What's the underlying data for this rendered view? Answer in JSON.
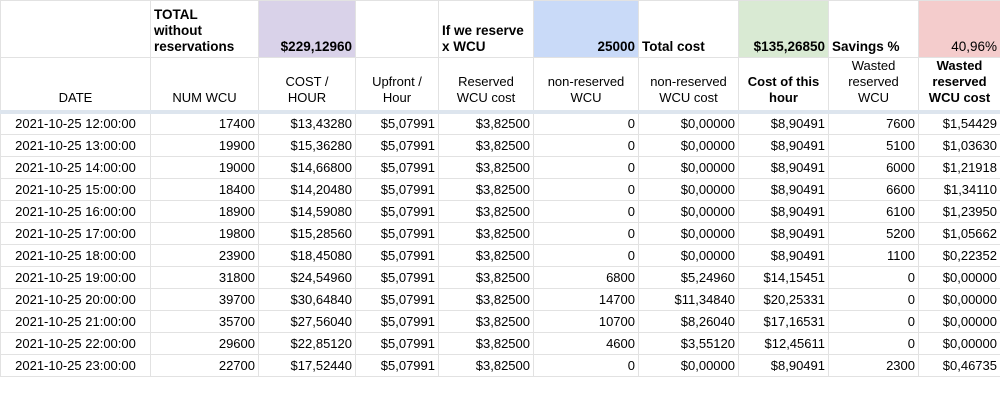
{
  "colors": {
    "purple_highlight": "#d9d2e9",
    "blue_highlight": "#c9daf8",
    "green_highlight": "#d9ead3",
    "red_highlight": "#f4cccc",
    "gridline": "#e2e2e2",
    "frozen_row_divider": "#dde5ee"
  },
  "summary": {
    "total_label": "TOTAL\nwithout\nreservations",
    "total_cost_per_hour": "$229,12960",
    "reserve_label": "If we reserve\nx WCU",
    "reserved_wcu": "25000",
    "total_cost_label": "Total cost",
    "total_cost_value": "$135,26850",
    "savings_label": "Savings %",
    "savings_value": "40,96%"
  },
  "column_headers": [
    "DATE",
    "NUM WCU",
    "COST /\nHOUR",
    "Upfront /\nHour",
    "Reserved\nWCU cost",
    "non-reserved\nWCU",
    "non-reserved\nWCU cost",
    "Cost of this\nhour",
    "Wasted\nreserved\nWCU",
    "Wasted\nreserved\nWCU cost"
  ],
  "column_keys": [
    "date",
    "num-wcu",
    "cost-hour",
    "upfront-hour",
    "reserved-wcu-cost",
    "non-reserved-wcu",
    "non-reserved-wcu-cost",
    "cost-of-this-hour",
    "wasted-reserved-wcu",
    "wasted-reserved-wcu-cost"
  ],
  "rows": [
    [
      "2021-10-25 12:00:00",
      "17400",
      "$13,43280",
      "$5,07991",
      "$3,82500",
      "0",
      "$0,00000",
      "$8,90491",
      "7600",
      "$1,54429"
    ],
    [
      "2021-10-25 13:00:00",
      "19900",
      "$15,36280",
      "$5,07991",
      "$3,82500",
      "0",
      "$0,00000",
      "$8,90491",
      "5100",
      "$1,03630"
    ],
    [
      "2021-10-25 14:00:00",
      "19000",
      "$14,66800",
      "$5,07991",
      "$3,82500",
      "0",
      "$0,00000",
      "$8,90491",
      "6000",
      "$1,21918"
    ],
    [
      "2021-10-25 15:00:00",
      "18400",
      "$14,20480",
      "$5,07991",
      "$3,82500",
      "0",
      "$0,00000",
      "$8,90491",
      "6600",
      "$1,34110"
    ],
    [
      "2021-10-25 16:00:00",
      "18900",
      "$14,59080",
      "$5,07991",
      "$3,82500",
      "0",
      "$0,00000",
      "$8,90491",
      "6100",
      "$1,23950"
    ],
    [
      "2021-10-25 17:00:00",
      "19800",
      "$15,28560",
      "$5,07991",
      "$3,82500",
      "0",
      "$0,00000",
      "$8,90491",
      "5200",
      "$1,05662"
    ],
    [
      "2021-10-25 18:00:00",
      "23900",
      "$18,45080",
      "$5,07991",
      "$3,82500",
      "0",
      "$0,00000",
      "$8,90491",
      "1100",
      "$0,22352"
    ],
    [
      "2021-10-25 19:00:00",
      "31800",
      "$24,54960",
      "$5,07991",
      "$3,82500",
      "6800",
      "$5,24960",
      "$14,15451",
      "0",
      "$0,00000"
    ],
    [
      "2021-10-25 20:00:00",
      "39700",
      "$30,64840",
      "$5,07991",
      "$3,82500",
      "14700",
      "$11,34840",
      "$20,25331",
      "0",
      "$0,00000"
    ],
    [
      "2021-10-25 21:00:00",
      "35700",
      "$27,56040",
      "$5,07991",
      "$3,82500",
      "10700",
      "$8,26040",
      "$17,16531",
      "0",
      "$0,00000"
    ],
    [
      "2021-10-25 22:00:00",
      "29600",
      "$22,85120",
      "$5,07991",
      "$3,82500",
      "4600",
      "$3,55120",
      "$12,45611",
      "0",
      "$0,00000"
    ],
    [
      "2021-10-25 23:00:00",
      "22700",
      "$17,52440",
      "$5,07991",
      "$3,82500",
      "0",
      "$0,00000",
      "$8,90491",
      "2300",
      "$0,46735"
    ]
  ]
}
